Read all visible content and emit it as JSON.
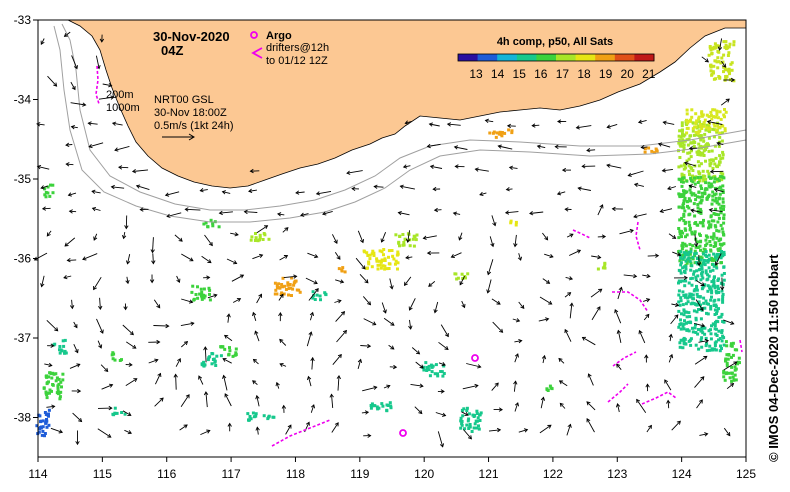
{
  "title": {
    "date": "30-Nov-2020",
    "time": "04Z"
  },
  "legend": {
    "argo_label": "Argo",
    "drifters_line1": "drifters@12h",
    "drifters_line2": "to 01/12 12Z",
    "colorbar_title": "4h comp, p50, All Sats",
    "colorbar_ticks": [
      "13",
      "14",
      "15",
      "16",
      "17",
      "18",
      "19",
      "20",
      "21"
    ],
    "colorbar_colors": [
      "#2a0fa0",
      "#1e5cd8",
      "#14b4d8",
      "#16c88c",
      "#3cd23c",
      "#a8e628",
      "#e6e614",
      "#f0a014",
      "#e05018",
      "#c01818"
    ]
  },
  "annotations": {
    "isobath_200": "200m",
    "isobath_1000": "1000m",
    "product": "NRT00 GSL",
    "valid_time": "30-Nov 18:00Z",
    "scale": "0.5m/s (1kt 24h)"
  },
  "axes": {
    "lon_ticks": [
      "114",
      "115",
      "116",
      "117",
      "118",
      "119",
      "120",
      "121",
      "122",
      "123",
      "124",
      "125"
    ],
    "lat_ticks": [
      "-33",
      "-34",
      "-35",
      "-36",
      "-37",
      "-38"
    ]
  },
  "credit": "© IMOS 04-Dec-2020 11:50 Hobart",
  "colors": {
    "land": "#fcc893",
    "argo": "#ee00ee",
    "drifter": "#ee00ee",
    "isobath": "#a0a0a0"
  }
}
